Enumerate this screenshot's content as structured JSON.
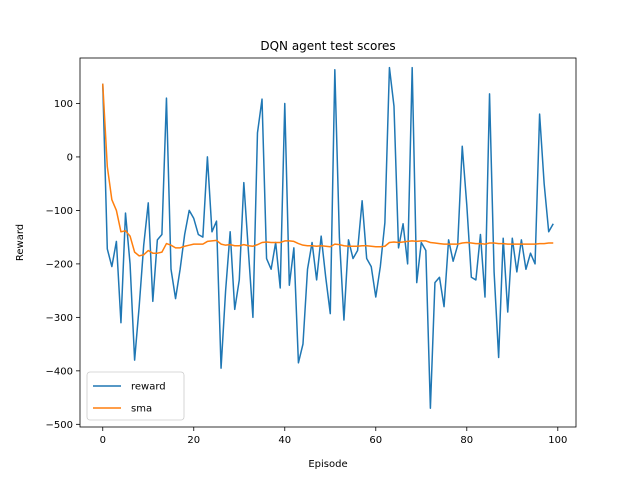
{
  "chart_data": {
    "type": "line",
    "title": "DQN agent test scores",
    "xlabel": "Episode",
    "ylabel": "Reward",
    "xlim": [
      -5,
      104
    ],
    "ylim": [
      -505,
      185
    ],
    "xticks": [
      0,
      20,
      40,
      60,
      80,
      100
    ],
    "yticks": [
      -500,
      -400,
      -300,
      -200,
      -100,
      0,
      100
    ],
    "grid": false,
    "legend": "lower-left",
    "series": [
      {
        "name": "reward",
        "color": "#1f77b4",
        "x": [
          0,
          1,
          2,
          3,
          4,
          5,
          6,
          7,
          8,
          9,
          10,
          11,
          12,
          13,
          14,
          15,
          16,
          17,
          18,
          19,
          20,
          21,
          22,
          23,
          24,
          25,
          26,
          27,
          28,
          29,
          30,
          31,
          32,
          33,
          34,
          35,
          36,
          37,
          38,
          39,
          40,
          41,
          42,
          43,
          44,
          45,
          46,
          47,
          48,
          49,
          50,
          51,
          52,
          53,
          54,
          55,
          56,
          57,
          58,
          59,
          60,
          61,
          62,
          63,
          64,
          65,
          66,
          67,
          68,
          69,
          70,
          71,
          72,
          73,
          74,
          75,
          76,
          77,
          78,
          79,
          80,
          81,
          82,
          83,
          84,
          85,
          86,
          87,
          88,
          89,
          90,
          91,
          92,
          93,
          94,
          95,
          96,
          97,
          98,
          99
        ],
        "values": [
          137,
          -172,
          -205,
          -158,
          -310,
          -105,
          -200,
          -380,
          -280,
          -165,
          -86,
          -270,
          -155,
          -145,
          110,
          -210,
          -265,
          -210,
          -145,
          -100,
          -115,
          -145,
          -150,
          0,
          -140,
          -120,
          -395,
          -250,
          -140,
          -285,
          -230,
          -48,
          -175,
          -300,
          45,
          108,
          -190,
          -210,
          -160,
          -245,
          100,
          -240,
          -170,
          -385,
          -350,
          -210,
          -160,
          -230,
          -148,
          -225,
          -293,
          163,
          -150,
          -305,
          -155,
          -190,
          -175,
          -82,
          -190,
          -205,
          -262,
          -205,
          -123,
          167,
          95,
          -170,
          -125,
          -200,
          167,
          -235,
          -160,
          -175,
          -470,
          -235,
          -225,
          -280,
          -155,
          -195,
          -165,
          20,
          -90,
          -225,
          -230,
          -145,
          -262,
          118,
          -215,
          -375,
          -152,
          -290,
          -152,
          -215,
          -155,
          -210,
          -180,
          -200,
          80,
          -50,
          -140,
          -125
        ]
      },
      {
        "name": "sma",
        "color": "#ff7f0e",
        "x": [
          0,
          1,
          2,
          3,
          4,
          5,
          6,
          7,
          8,
          9,
          10,
          11,
          12,
          13,
          14,
          15,
          16,
          17,
          18,
          19,
          20,
          21,
          22,
          23,
          24,
          25,
          26,
          27,
          28,
          29,
          30,
          31,
          32,
          33,
          34,
          35,
          36,
          37,
          38,
          39,
          40,
          41,
          42,
          43,
          44,
          45,
          46,
          47,
          48,
          49,
          50,
          51,
          52,
          53,
          54,
          55,
          56,
          57,
          58,
          59,
          60,
          61,
          62,
          63,
          64,
          65,
          66,
          67,
          68,
          69,
          70,
          71,
          72,
          73,
          74,
          75,
          76,
          77,
          78,
          79,
          80,
          81,
          82,
          83,
          84,
          85,
          86,
          87,
          88,
          89,
          90,
          91,
          92,
          93,
          94,
          95,
          96,
          97,
          98,
          99
        ],
        "values": [
          137,
          -18,
          -80,
          -100,
          -140,
          -138,
          -148,
          -178,
          -185,
          -183,
          -175,
          -180,
          -180,
          -178,
          -162,
          -165,
          -170,
          -170,
          -167,
          -165,
          -163,
          -163,
          -163,
          -158,
          -157,
          -156,
          -163,
          -165,
          -164,
          -166,
          -166,
          -164,
          -166,
          -167,
          -164,
          -160,
          -159,
          -160,
          -160,
          -160,
          -157,
          -157,
          -158,
          -162,
          -165,
          -166,
          -166,
          -167,
          -166,
          -167,
          -168,
          -163,
          -164,
          -166,
          -167,
          -167,
          -167,
          -166,
          -166,
          -167,
          -168,
          -168,
          -167,
          -160,
          -159,
          -160,
          -159,
          -158,
          -157,
          -158,
          -157,
          -157,
          -160,
          -161,
          -162,
          -163,
          -163,
          -163,
          -163,
          -161,
          -160,
          -161,
          -162,
          -162,
          -163,
          -161,
          -161,
          -162,
          -162,
          -163,
          -163,
          -163,
          -163,
          -163,
          -163,
          -163,
          -162,
          -162,
          -161,
          -161
        ]
      }
    ]
  }
}
